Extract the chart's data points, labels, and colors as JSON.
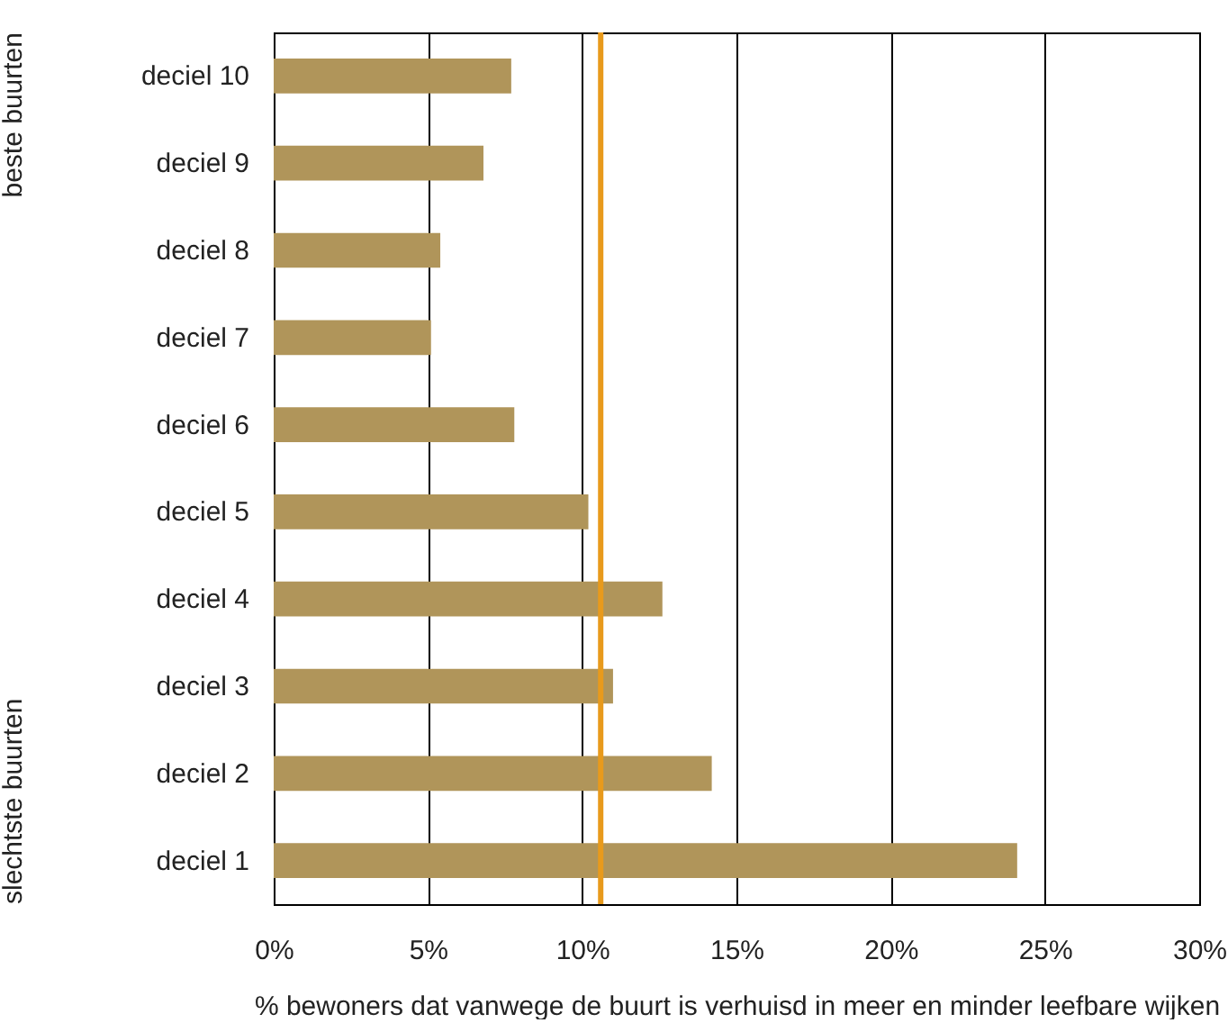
{
  "chart_data": {
    "type": "bar",
    "orientation": "horizontal",
    "xlabel": "% bewoners dat vanwege de buurt is verhuisd in meer en minder leefbare wijken",
    "categories": [
      "deciel 10",
      "deciel 9",
      "deciel 8",
      "deciel 7",
      "deciel 6",
      "deciel 5",
      "deciel 4",
      "deciel 3",
      "deciel 2",
      "deciel 1"
    ],
    "values": [
      7.7,
      6.8,
      5.4,
      5.1,
      7.8,
      10.2,
      12.6,
      11.0,
      14.2,
      24.1
    ],
    "color": "#b0955a",
    "xlim": [
      0,
      30
    ],
    "xticks": [
      {
        "value": 0,
        "label": "0%"
      },
      {
        "value": 5,
        "label": "5%"
      },
      {
        "value": 10,
        "label": "10%"
      },
      {
        "value": 15,
        "label": "15%"
      },
      {
        "value": 20,
        "label": "20%"
      },
      {
        "value": 25,
        "label": "25%"
      },
      {
        "value": 30,
        "label": "30%"
      }
    ],
    "grid": "x",
    "ref_lines": [
      {
        "axis": "x",
        "value": 10.6,
        "color": "#e89a1c"
      }
    ],
    "annotations": [
      "beste buurten",
      "slechtste buurten"
    ]
  }
}
